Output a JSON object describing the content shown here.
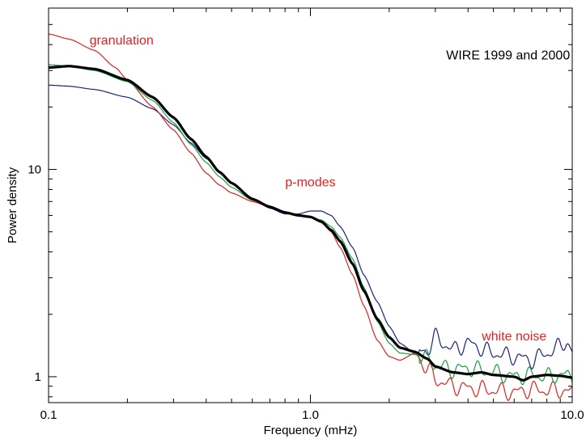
{
  "chart_data": {
    "type": "line",
    "title": "WIRE 1999 and 2000",
    "xlabel": "Frequency (mHz)",
    "ylabel": "Power density",
    "xscale": "log",
    "yscale": "log",
    "xlim": [
      0.1,
      10.0
    ],
    "ylim": [
      0.75,
      60
    ],
    "grid": false,
    "x_tick_labels": [
      {
        "value": 0.1,
        "label": "0.1"
      },
      {
        "value": 1.0,
        "label": "1.0"
      },
      {
        "value": 10.0,
        "label": "10.0"
      }
    ],
    "y_tick_labels": [
      {
        "value": 1,
        "label": "1"
      },
      {
        "value": 10,
        "label": "10"
      }
    ],
    "annotations": [
      {
        "text": "granulation",
        "x": 0.19,
        "y": 40,
        "color": "#e02020"
      },
      {
        "text": "p-modes",
        "x": 1.0,
        "y": 8.3,
        "color": "#e02020"
      },
      {
        "text": "white noise",
        "x": 6.0,
        "y": 1.5,
        "color": "#e02020"
      },
      {
        "text": "WIRE 1999 and 2000",
        "x": 3.3,
        "y": 34,
        "color": "#000000"
      }
    ],
    "series": [
      {
        "color": "#1a237e",
        "width": 1.2,
        "wiggle": true,
        "x": [
          0.1,
          0.12,
          0.15,
          0.2,
          0.25,
          0.3,
          0.35,
          0.4,
          0.45,
          0.5,
          0.6,
          0.7,
          0.8,
          0.9,
          1.0,
          1.1,
          1.2,
          1.3,
          1.45,
          1.6,
          1.8,
          2.0,
          2.2,
          2.5,
          2.8,
          3.0,
          3.5,
          4.0,
          5.0,
          6.0,
          7.0,
          8.0,
          9.0,
          9.5,
          10.0
        ],
        "y": [
          25.5,
          25.2,
          24.3,
          22.3,
          19.6,
          16.4,
          13.4,
          11.3,
          9.8,
          8.6,
          7.2,
          6.5,
          6.1,
          6.1,
          6.3,
          6.3,
          6.0,
          5.3,
          4.2,
          3.1,
          2.3,
          1.75,
          1.45,
          1.3,
          1.35,
          1.55,
          1.35,
          1.45,
          1.3,
          1.25,
          1.2,
          1.3,
          1.4,
          1.5,
          1.3
        ]
      },
      {
        "color": "#e02020",
        "width": 1.2,
        "wiggle": true,
        "x": [
          0.1,
          0.12,
          0.15,
          0.18,
          0.2,
          0.25,
          0.3,
          0.35,
          0.4,
          0.45,
          0.5,
          0.6,
          0.7,
          0.8,
          0.9,
          1.0,
          1.1,
          1.2,
          1.3,
          1.45,
          1.6,
          1.8,
          2.0,
          2.2,
          2.5,
          2.8,
          3.0,
          3.5,
          4.0,
          5.0,
          6.0,
          7.0,
          8.0,
          9.0,
          10.0
        ],
        "y": [
          45,
          42.5,
          37.5,
          31,
          27,
          20,
          15.5,
          12,
          9.6,
          8.4,
          7.7,
          7.0,
          6.6,
          6.2,
          6.0,
          5.9,
          5.6,
          5.0,
          4.2,
          3.1,
          2.2,
          1.5,
          1.25,
          1.2,
          1.3,
          1.1,
          0.97,
          0.9,
          0.88,
          0.86,
          0.84,
          0.87,
          0.86,
          0.86,
          0.84
        ]
      },
      {
        "color": "#18a040",
        "width": 1.2,
        "wiggle": true,
        "x": [
          0.1,
          0.12,
          0.15,
          0.2,
          0.25,
          0.3,
          0.35,
          0.4,
          0.45,
          0.5,
          0.6,
          0.7,
          0.8,
          0.9,
          1.0,
          1.1,
          1.2,
          1.3,
          1.45,
          1.6,
          1.8,
          2.0,
          2.2,
          2.5,
          2.8,
          3.0,
          3.5,
          4.0,
          5.0,
          6.0,
          7.0,
          8.0,
          9.0,
          10.0
        ],
        "y": [
          32,
          31.5,
          30,
          26.5,
          21.5,
          16.8,
          13.2,
          10.8,
          9.2,
          8.2,
          7.1,
          6.6,
          6.2,
          6.0,
          5.9,
          5.7,
          5.3,
          4.7,
          3.7,
          2.7,
          1.85,
          1.45,
          1.3,
          1.28,
          1.22,
          1.14,
          1.08,
          1.1,
          1.05,
          1.0,
          1.02,
          1.0,
          1.02,
          1.0
        ]
      },
      {
        "color": "#000000",
        "width": 3.2,
        "wiggle": false,
        "x": [
          0.1,
          0.12,
          0.15,
          0.2,
          0.25,
          0.3,
          0.35,
          0.4,
          0.45,
          0.5,
          0.6,
          0.7,
          0.8,
          0.9,
          1.0,
          1.1,
          1.2,
          1.3,
          1.45,
          1.6,
          1.8,
          2.0,
          2.2,
          2.5,
          2.8,
          3.0,
          3.5,
          4.0,
          4.5,
          5.0,
          6.0,
          6.5,
          7.0,
          8.0,
          9.0,
          10.0
        ],
        "y": [
          31,
          31.5,
          30.5,
          27,
          22.3,
          17.8,
          14,
          11.5,
          9.7,
          8.6,
          7.2,
          6.6,
          6.2,
          6.0,
          5.9,
          5.6,
          5.1,
          4.5,
          3.5,
          2.6,
          1.9,
          1.55,
          1.38,
          1.32,
          1.22,
          1.12,
          1.05,
          1.03,
          1.05,
          1.02,
          1.0,
          0.96,
          1.0,
          1.02,
          1.01,
          0.99
        ]
      }
    ]
  }
}
